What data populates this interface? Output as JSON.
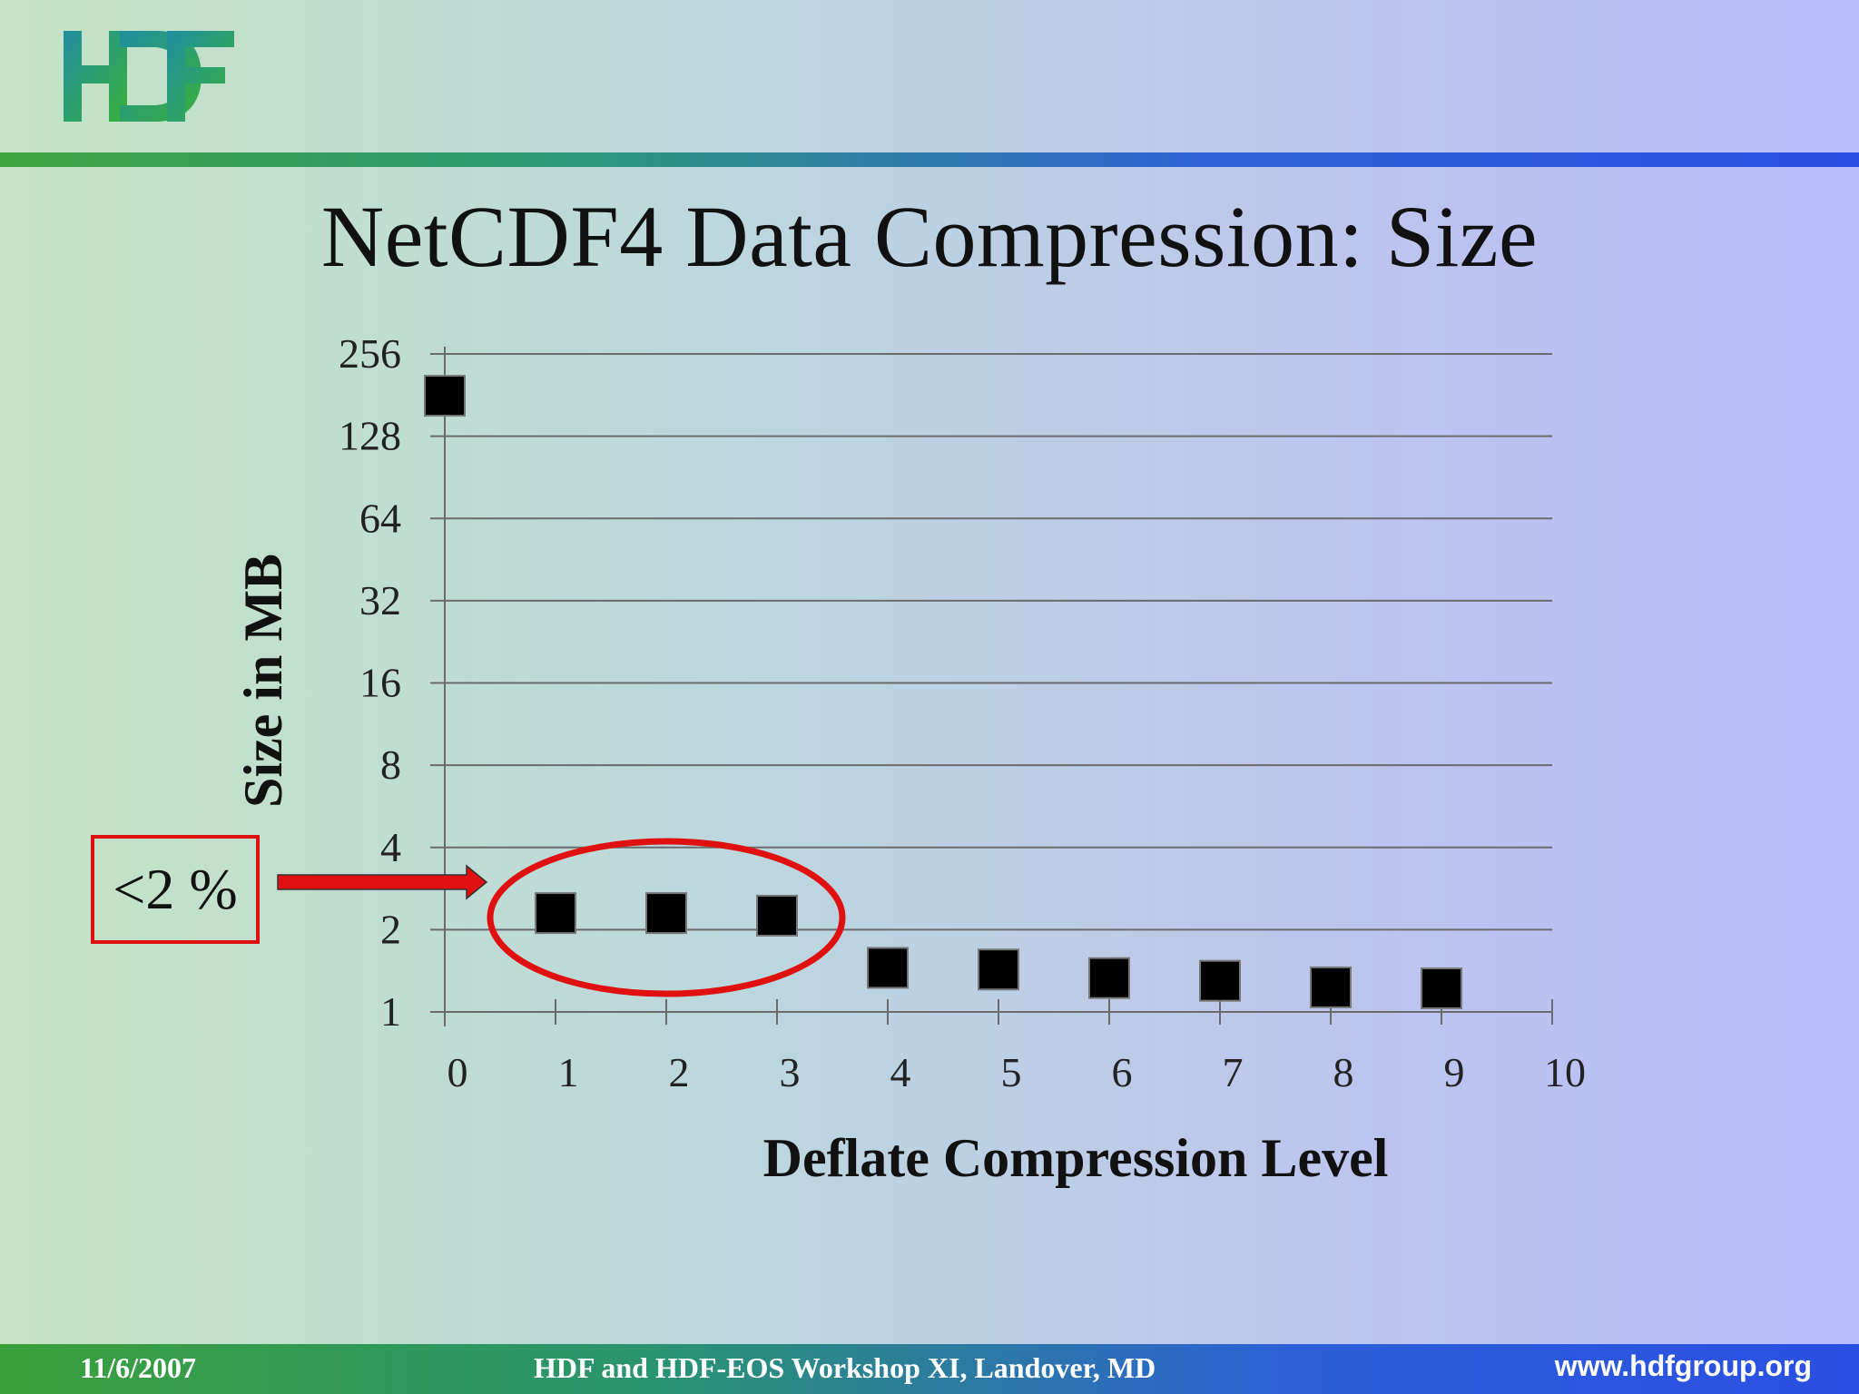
{
  "slide": {
    "title": "NetCDF4 Data Compression: Size",
    "callout_text": "<2 %",
    "logo_text": "HDF"
  },
  "footer": {
    "date": "11/6/2007",
    "event": "HDF and HDF-EOS Workshop XI, Landover, MD",
    "url": "www.hdfgroup.org"
  },
  "colors": {
    "marker": "#000000",
    "callout": "#e01010",
    "logo_green": "#2fa23a",
    "logo_teal": "#1e8f86"
  },
  "chart_data": {
    "type": "scatter",
    "title": "",
    "xlabel": "Deflate Compression Level",
    "ylabel": "Size in MB",
    "xlim": [
      0,
      10
    ],
    "ylim": [
      1,
      256
    ],
    "y_scale": "log2",
    "x_ticks": [
      "0",
      "1",
      "2",
      "3",
      "4",
      "5",
      "6",
      "7",
      "8",
      "9",
      "10"
    ],
    "y_ticks": [
      "1",
      "2",
      "4",
      "8",
      "16",
      "32",
      "64",
      "128",
      "256"
    ],
    "grid": "horizontal",
    "x": [
      0,
      1,
      2,
      3,
      4,
      5,
      6,
      7,
      8,
      9
    ],
    "y": [
      180,
      2.3,
      2.3,
      2.25,
      1.45,
      1.43,
      1.33,
      1.3,
      1.23,
      1.22
    ],
    "highlight_x": [
      1,
      2,
      3
    ]
  }
}
